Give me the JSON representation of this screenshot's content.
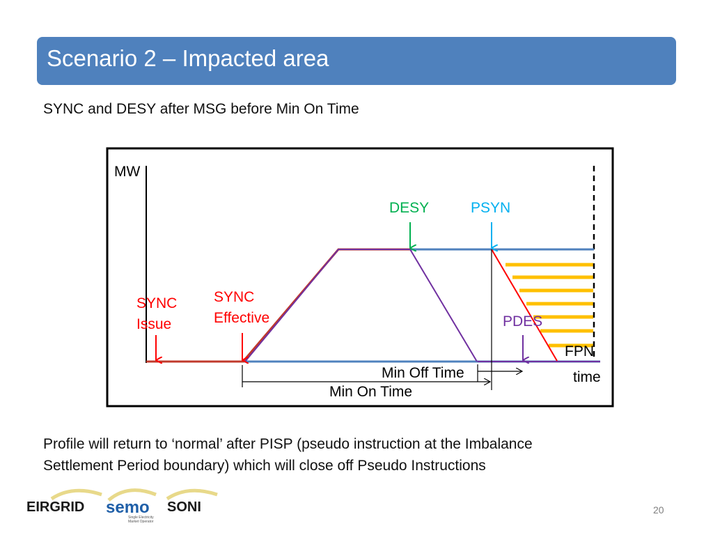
{
  "title": "Scenario 2 – Impacted area",
  "subtitle": "SYNC and DESY after MSG before Min On Time",
  "diagram": {
    "y_axis_label": "MW",
    "x_axis_label": "time",
    "labels": {
      "desy": "DESY",
      "psyn": "PSYN",
      "sync_issue_line1": "SYNC",
      "sync_issue_line2": "Issue",
      "sync_effective_line1": "SYNC",
      "sync_effective_line2": "Effective",
      "pdes": "PDES",
      "fpn": "FPN",
      "min_off_time": "Min Off Time",
      "min_on_time": "Min On Time"
    },
    "colors": {
      "desy": "#00b050",
      "psyn": "#00b0f0",
      "sync": "#ff0000",
      "pdes": "#7030a0",
      "baseline": "#4f81bd",
      "hatch": "#ffc000"
    }
  },
  "footer": {
    "line1": "Profile will return to ‘normal’ after PISP (pseudo instruction at the Imbalance",
    "line2": "Settlement Period boundary) which will close off Pseudo Instructions"
  },
  "logos": {
    "eirgrid": "EIRGRID",
    "semo": "semo",
    "semo_tag1": "Single Electricity",
    "semo_tag2": "Market Operator",
    "soni": "SONI"
  },
  "page_number": "20"
}
